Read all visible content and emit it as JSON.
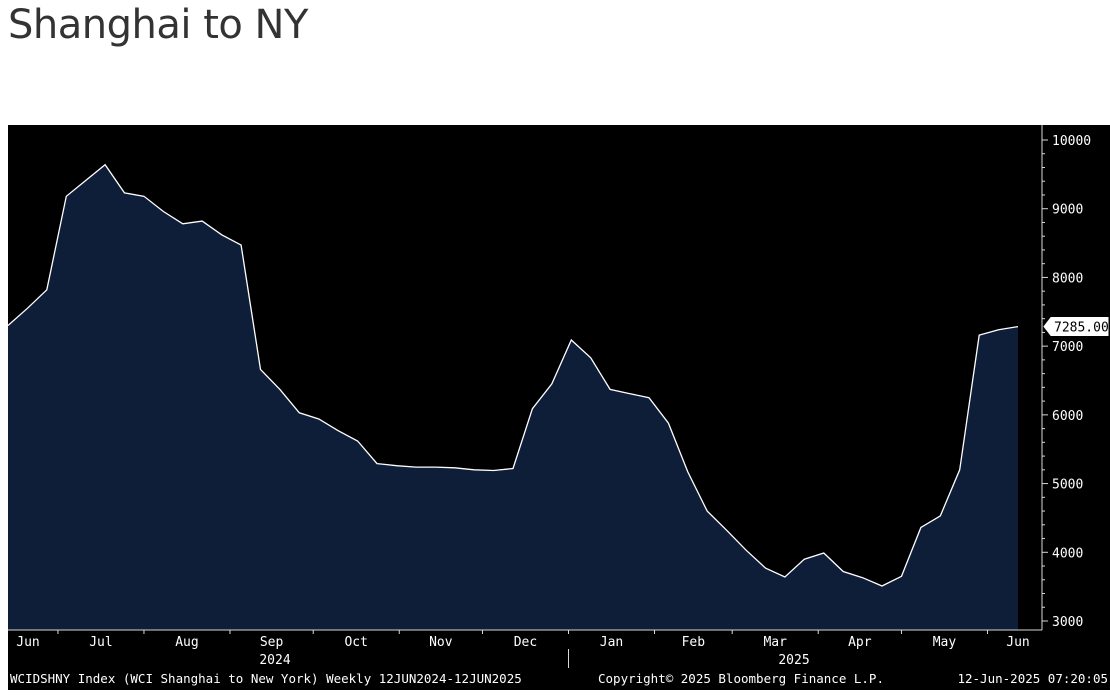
{
  "page": {
    "title": "Shanghai to NY"
  },
  "chart_data": {
    "type": "area",
    "title": "",
    "xlabel": "",
    "ylabel": "",
    "ylim": [
      3000,
      10000
    ],
    "yticks": [
      3000,
      4000,
      5000,
      6000,
      7000,
      8000,
      9000,
      10000
    ],
    "last_value_label": "7285.00",
    "x_month_labels": [
      "Jun",
      "Jul",
      "Aug",
      "Sep",
      "Oct",
      "Nov",
      "Dec",
      "Jan",
      "Feb",
      "Mar",
      "Apr",
      "May",
      "Jun"
    ],
    "x_year_labels": [
      "2024",
      "2025"
    ],
    "series": [
      {
        "x": [
          "2024-06-13",
          "2024-06-20",
          "2024-06-27",
          "2024-07-04",
          "2024-07-11",
          "2024-07-18",
          "2024-07-25",
          "2024-08-01",
          "2024-08-08",
          "2024-08-15",
          "2024-08-22",
          "2024-08-29",
          "2024-09-05",
          "2024-09-12",
          "2024-09-19",
          "2024-09-26",
          "2024-10-03",
          "2024-10-10",
          "2024-10-17",
          "2024-10-24",
          "2024-10-31",
          "2024-11-07",
          "2024-11-14",
          "2024-11-21",
          "2024-11-28",
          "2024-12-05",
          "2024-12-12",
          "2024-12-19",
          "2024-12-26",
          "2025-01-02",
          "2025-01-09",
          "2025-01-16",
          "2025-01-23",
          "2025-01-30",
          "2025-02-06",
          "2025-02-13",
          "2025-02-20",
          "2025-02-27",
          "2025-03-06",
          "2025-03-13",
          "2025-03-20",
          "2025-03-27",
          "2025-04-03",
          "2025-04-10",
          "2025-04-17",
          "2025-04-24",
          "2025-05-01",
          "2025-05-08",
          "2025-05-15",
          "2025-05-22",
          "2025-05-29",
          "2025-06-05",
          "2025-06-12"
        ],
        "values": [
          7300,
          7550,
          7820,
          9180,
          9410,
          9640,
          9230,
          9180,
          8960,
          8780,
          8820,
          8620,
          8470,
          6660,
          6370,
          6030,
          5940,
          5770,
          5620,
          5290,
          5260,
          5240,
          5240,
          5230,
          5200,
          5190,
          5220,
          6090,
          6450,
          7090,
          6830,
          6370,
          6310,
          6250,
          5880,
          5170,
          4600,
          4320,
          4030,
          3770,
          3640,
          3900,
          3990,
          3720,
          3630,
          3510,
          3650,
          4360,
          4530,
          5200,
          7160,
          7240,
          7285
        ]
      }
    ]
  },
  "footer": {
    "left": "WCIDSHNY Index (WCI Shanghai to New York)  Weekly 12JUN2024-12JUN2025",
    "center": "Copyright© 2025 Bloomberg Finance L.P.",
    "right": "12-Jun-2025 07:20:05"
  },
  "colors": {
    "background": "#000000",
    "area_fill": "#0e1d38",
    "line": "#ffffff",
    "axis": "#d9d9d9",
    "text": "#ffffff",
    "title": "#333333"
  }
}
